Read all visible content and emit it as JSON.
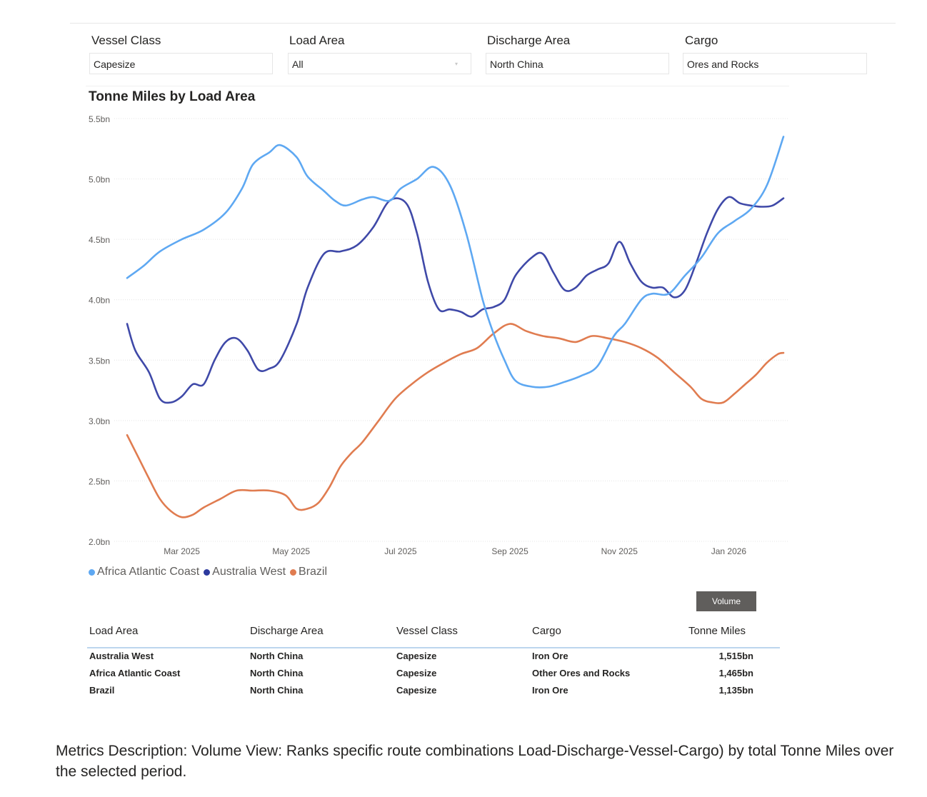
{
  "filters": [
    {
      "label": "Vessel Class",
      "value": "Capesize"
    },
    {
      "label": "Load Area",
      "value": "All"
    },
    {
      "label": "Discharge Area",
      "value": "North China"
    },
    {
      "label": "Cargo",
      "value": "Ores and Rocks"
    }
  ],
  "chart_data": {
    "type": "line",
    "title": "Tonne Miles by Load Area",
    "xlabel": "",
    "ylabel": "",
    "ylim": [
      2.0,
      5.5
    ],
    "yticks": [
      2.0,
      2.5,
      3.0,
      3.5,
      4.0,
      4.5,
      5.0,
      5.5
    ],
    "ytick_labels": [
      "2.0bn",
      "2.5bn",
      "3.0bn",
      "3.5bn",
      "4.0bn",
      "4.5bn",
      "5.0bn",
      "5.5bn"
    ],
    "x_start_month": 1.0,
    "x_end_month": 13.0,
    "xticks": [
      {
        "month": 2.0,
        "label": "Mar 2025"
      },
      {
        "month": 4.0,
        "label": "May 2025"
      },
      {
        "month": 6.0,
        "label": "Jul 2025"
      },
      {
        "month": 8.0,
        "label": "Sep 2025"
      },
      {
        "month": 10.0,
        "label": "Nov 2025"
      },
      {
        "month": 12.0,
        "label": "Jan 2026"
      }
    ],
    "grid": true,
    "legend_position": "bottom-left",
    "series": [
      {
        "name": "Africa Atlantic Coast",
        "color": "#5ea8f2",
        "x": [
          1.0,
          1.3,
          1.6,
          2.0,
          2.4,
          2.8,
          3.1,
          3.3,
          3.6,
          3.8,
          4.1,
          4.3,
          4.6,
          4.8,
          5.0,
          5.3,
          5.5,
          5.8,
          6.0,
          6.3,
          6.6,
          6.9,
          7.2,
          7.5,
          7.7,
          7.9,
          8.1,
          8.4,
          8.7,
          9.0,
          9.3,
          9.6,
          9.9,
          10.1,
          10.4,
          10.6,
          10.9,
          11.2,
          11.5,
          11.8,
          12.1,
          12.4,
          12.7,
          13.0
        ],
        "values": [
          4.18,
          4.28,
          4.4,
          4.5,
          4.58,
          4.72,
          4.92,
          5.12,
          5.22,
          5.28,
          5.18,
          5.02,
          4.9,
          4.82,
          4.78,
          4.83,
          4.85,
          4.82,
          4.92,
          5.0,
          5.1,
          4.95,
          4.55,
          4.0,
          3.72,
          3.5,
          3.33,
          3.28,
          3.28,
          3.32,
          3.37,
          3.45,
          3.7,
          3.8,
          4.0,
          4.05,
          4.05,
          4.2,
          4.35,
          4.55,
          4.65,
          4.75,
          4.95,
          5.35
        ]
      },
      {
        "name": "Australia West",
        "color": "#3f49a8",
        "x": [
          1.0,
          1.15,
          1.4,
          1.6,
          1.8,
          2.0,
          2.2,
          2.4,
          2.6,
          2.8,
          3.0,
          3.2,
          3.4,
          3.6,
          3.8,
          4.1,
          4.3,
          4.6,
          4.9,
          5.2,
          5.5,
          5.8,
          6.1,
          6.3,
          6.5,
          6.7,
          6.9,
          7.1,
          7.3,
          7.5,
          7.7,
          7.9,
          8.1,
          8.4,
          8.6,
          8.8,
          9.0,
          9.2,
          9.4,
          9.6,
          9.8,
          10.0,
          10.2,
          10.4,
          10.6,
          10.8,
          11.0,
          11.2,
          11.4,
          11.6,
          11.8,
          12.0,
          12.2,
          12.4,
          12.6,
          12.8,
          13.0
        ],
        "values": [
          3.8,
          3.58,
          3.4,
          3.18,
          3.15,
          3.2,
          3.3,
          3.3,
          3.5,
          3.65,
          3.68,
          3.58,
          3.42,
          3.43,
          3.5,
          3.8,
          4.1,
          4.38,
          4.4,
          4.45,
          4.6,
          4.82,
          4.8,
          4.55,
          4.15,
          3.92,
          3.92,
          3.9,
          3.86,
          3.92,
          3.94,
          4.0,
          4.2,
          4.35,
          4.38,
          4.22,
          4.08,
          4.1,
          4.2,
          4.25,
          4.3,
          4.48,
          4.3,
          4.15,
          4.1,
          4.1,
          4.02,
          4.08,
          4.3,
          4.55,
          4.75,
          4.85,
          4.8,
          4.78,
          4.77,
          4.78,
          4.84
        ]
      },
      {
        "name": "Brazil",
        "color": "#e07c50",
        "x": [
          1.0,
          1.2,
          1.4,
          1.6,
          1.8,
          2.0,
          2.2,
          2.4,
          2.7,
          3.0,
          3.3,
          3.6,
          3.9,
          4.1,
          4.3,
          4.5,
          4.7,
          4.9,
          5.1,
          5.3,
          5.6,
          5.9,
          6.2,
          6.5,
          6.8,
          7.1,
          7.4,
          7.7,
          8.0,
          8.3,
          8.6,
          8.9,
          9.2,
          9.5,
          9.8,
          10.1,
          10.4,
          10.7,
          11.0,
          11.3,
          11.5,
          11.7,
          11.9,
          12.1,
          12.3,
          12.5,
          12.7,
          12.9,
          13.0
        ],
        "values": [
          2.88,
          2.7,
          2.52,
          2.35,
          2.25,
          2.2,
          2.22,
          2.28,
          2.35,
          2.42,
          2.42,
          2.42,
          2.38,
          2.27,
          2.27,
          2.32,
          2.45,
          2.62,
          2.73,
          2.82,
          3.0,
          3.18,
          3.3,
          3.4,
          3.48,
          3.55,
          3.6,
          3.72,
          3.8,
          3.74,
          3.7,
          3.68,
          3.65,
          3.7,
          3.68,
          3.65,
          3.6,
          3.52,
          3.4,
          3.28,
          3.18,
          3.15,
          3.15,
          3.22,
          3.3,
          3.38,
          3.48,
          3.55,
          3.56
        ]
      }
    ]
  },
  "volume_button": "Volume",
  "table": {
    "headers": [
      "Load Area",
      "Discharge Area",
      "Vessel Class",
      "Cargo",
      "Tonne Miles"
    ],
    "rows": [
      [
        "Australia West",
        "North China",
        "Capesize",
        "Iron Ore",
        "1,515bn"
      ],
      [
        "Africa Atlantic Coast",
        "North China",
        "Capesize",
        "Other Ores and Rocks",
        "1,465bn"
      ],
      [
        "Brazil",
        "North China",
        "Capesize",
        "Iron Ore",
        "1,135bn"
      ]
    ]
  },
  "description": "Metrics Description: Volume View: Ranks specific route combinations Load-Discharge-Vessel-Cargo) by total Tonne Miles over the selected period."
}
